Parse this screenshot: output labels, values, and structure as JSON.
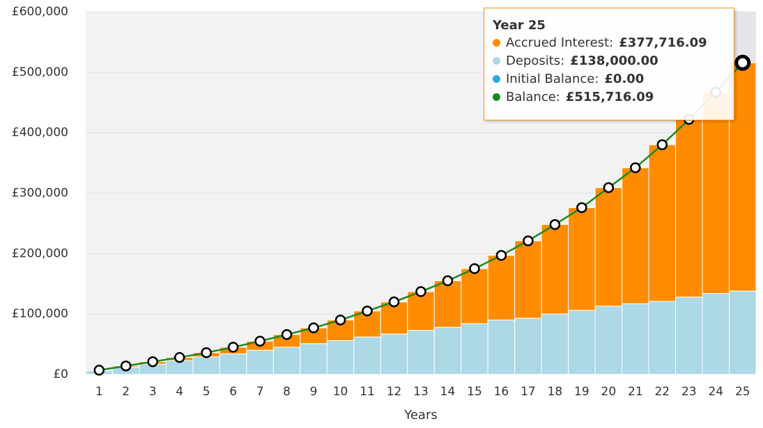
{
  "chart_data": {
    "type": "stacked-bar-line",
    "x_label": "Years",
    "categories": [
      "1",
      "2",
      "3",
      "4",
      "5",
      "6",
      "7",
      "8",
      "9",
      "10",
      "11",
      "12",
      "13",
      "14",
      "15",
      "16",
      "17",
      "18",
      "19",
      "20",
      "21",
      "22",
      "23",
      "24",
      "25"
    ],
    "series": [
      {
        "name": "Accrued Interest:",
        "color": "#ff8c00",
        "kind": "bar",
        "values": [
          1000,
          2000,
          4000,
          5000,
          7000,
          11000,
          15000,
          21000,
          26000,
          34000,
          43000,
          53000,
          64000,
          77000,
          91000,
          107000,
          128000,
          148000,
          170000,
          196000,
          225000,
          259000,
          294000,
          333000,
          377716.09
        ]
      },
      {
        "name": "Deposits:",
        "color": "#add8e6",
        "kind": "bar",
        "values": [
          6000,
          12000,
          17000,
          23000,
          29000,
          34000,
          40000,
          45000,
          51000,
          56000,
          62000,
          67000,
          73000,
          78000,
          84000,
          90000,
          93000,
          100000,
          106000,
          113000,
          117000,
          121000,
          128000,
          134000,
          138000
        ]
      },
      {
        "name": "Initial Balance:",
        "color": "#29abe2",
        "kind": "bar",
        "values": [
          0,
          0,
          0,
          0,
          0,
          0,
          0,
          0,
          0,
          0,
          0,
          0,
          0,
          0,
          0,
          0,
          0,
          0,
          0,
          0,
          0,
          0,
          0,
          0,
          0
        ]
      },
      {
        "name": "Balance:",
        "color": "#1a8a1a",
        "kind": "line",
        "values": [
          7000,
          14000,
          21000,
          28000,
          36000,
          45000,
          55000,
          66000,
          77000,
          90000,
          105000,
          120000,
          137000,
          155000,
          175000,
          197000,
          221000,
          248000,
          276000,
          309000,
          342000,
          380000,
          422000,
          467000,
          515716.09
        ]
      }
    ],
    "ylim": [
      0,
      600000
    ],
    "yticks": [
      {
        "value": 0,
        "label": "£0"
      },
      {
        "value": 100000,
        "label": "£100,000"
      },
      {
        "value": 200000,
        "label": "£200,000"
      },
      {
        "value": 300000,
        "label": "£300,000"
      },
      {
        "value": 400000,
        "label": "£400,000"
      },
      {
        "value": 500000,
        "label": "£500,000"
      },
      {
        "value": 600000,
        "label": "£600,000"
      }
    ],
    "grid": true,
    "tooltip": {
      "title": "Year 25",
      "values": [
        "£377,716.09",
        "£138,000.00",
        "£0.00",
        "£515,716.09"
      ]
    }
  }
}
